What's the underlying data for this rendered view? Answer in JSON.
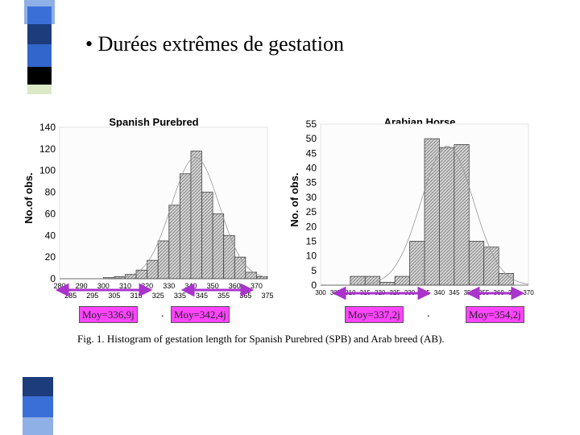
{
  "slide": {
    "title": "• Durées extrêmes de gestation",
    "caption": "Fig. 1. Histogram of gestation length for Spanish Purebred (SPB) and Arab breed (AB).",
    "labels": [
      {
        "text": "Moy=336,9j"
      },
      {
        "text": "Moy=342,4j"
      },
      {
        "text": "Moy=337,2j"
      },
      {
        "text": "Moy=354,2j"
      }
    ],
    "separator": ".",
    "colors": {
      "highlight": "#ff44ff",
      "arrow": "#aa33cc",
      "deco_blue": "#3366cc",
      "deco_navy": "#1f3f7f"
    }
  },
  "chart_data": [
    {
      "type": "bar",
      "title": "Spanish Purebred",
      "ylabel": "No.of obs.",
      "ylim": [
        0,
        140
      ],
      "yticks": [
        0,
        20,
        40,
        60,
        80,
        100,
        120,
        140
      ],
      "xlim": [
        280,
        375
      ],
      "xticks_top": [
        280,
        290,
        300,
        310,
        320,
        330,
        340,
        350,
        360,
        370
      ],
      "xticks_bottom": [
        285,
        295,
        305,
        315,
        325,
        335,
        345,
        355,
        365,
        375
      ],
      "bins": [
        {
          "x": 300,
          "v": 1
        },
        {
          "x": 305,
          "v": 2
        },
        {
          "x": 310,
          "v": 4
        },
        {
          "x": 315,
          "v": 8
        },
        {
          "x": 320,
          "v": 17
        },
        {
          "x": 325,
          "v": 35
        },
        {
          "x": 330,
          "v": 68
        },
        {
          "x": 335,
          "v": 97
        },
        {
          "x": 340,
          "v": 118
        },
        {
          "x": 345,
          "v": 80
        },
        {
          "x": 350,
          "v": 60
        },
        {
          "x": 355,
          "v": 40
        },
        {
          "x": 360,
          "v": 20
        },
        {
          "x": 365,
          "v": 6
        },
        {
          "x": 370,
          "v": 2
        }
      ]
    },
    {
      "type": "bar",
      "title": "Arabian Horse",
      "ylabel": "No. of obs.",
      "ylim": [
        0,
        55
      ],
      "yticks": [
        0,
        5,
        10,
        15,
        20,
        25,
        30,
        35,
        40,
        45,
        50,
        55
      ],
      "xlim": [
        300,
        370
      ],
      "xticks": [
        300,
        305,
        310,
        315,
        320,
        325,
        330,
        335,
        340,
        345,
        350,
        355,
        360,
        365,
        370
      ],
      "bins": [
        {
          "x": 310,
          "v": 3
        },
        {
          "x": 315,
          "v": 3
        },
        {
          "x": 320,
          "v": 1
        },
        {
          "x": 325,
          "v": 3
        },
        {
          "x": 330,
          "v": 15
        },
        {
          "x": 335,
          "v": 50
        },
        {
          "x": 340,
          "v": 47
        },
        {
          "x": 345,
          "v": 48
        },
        {
          "x": 350,
          "v": 15
        },
        {
          "x": 355,
          "v": 13
        },
        {
          "x": 360,
          "v": 4
        }
      ]
    }
  ]
}
